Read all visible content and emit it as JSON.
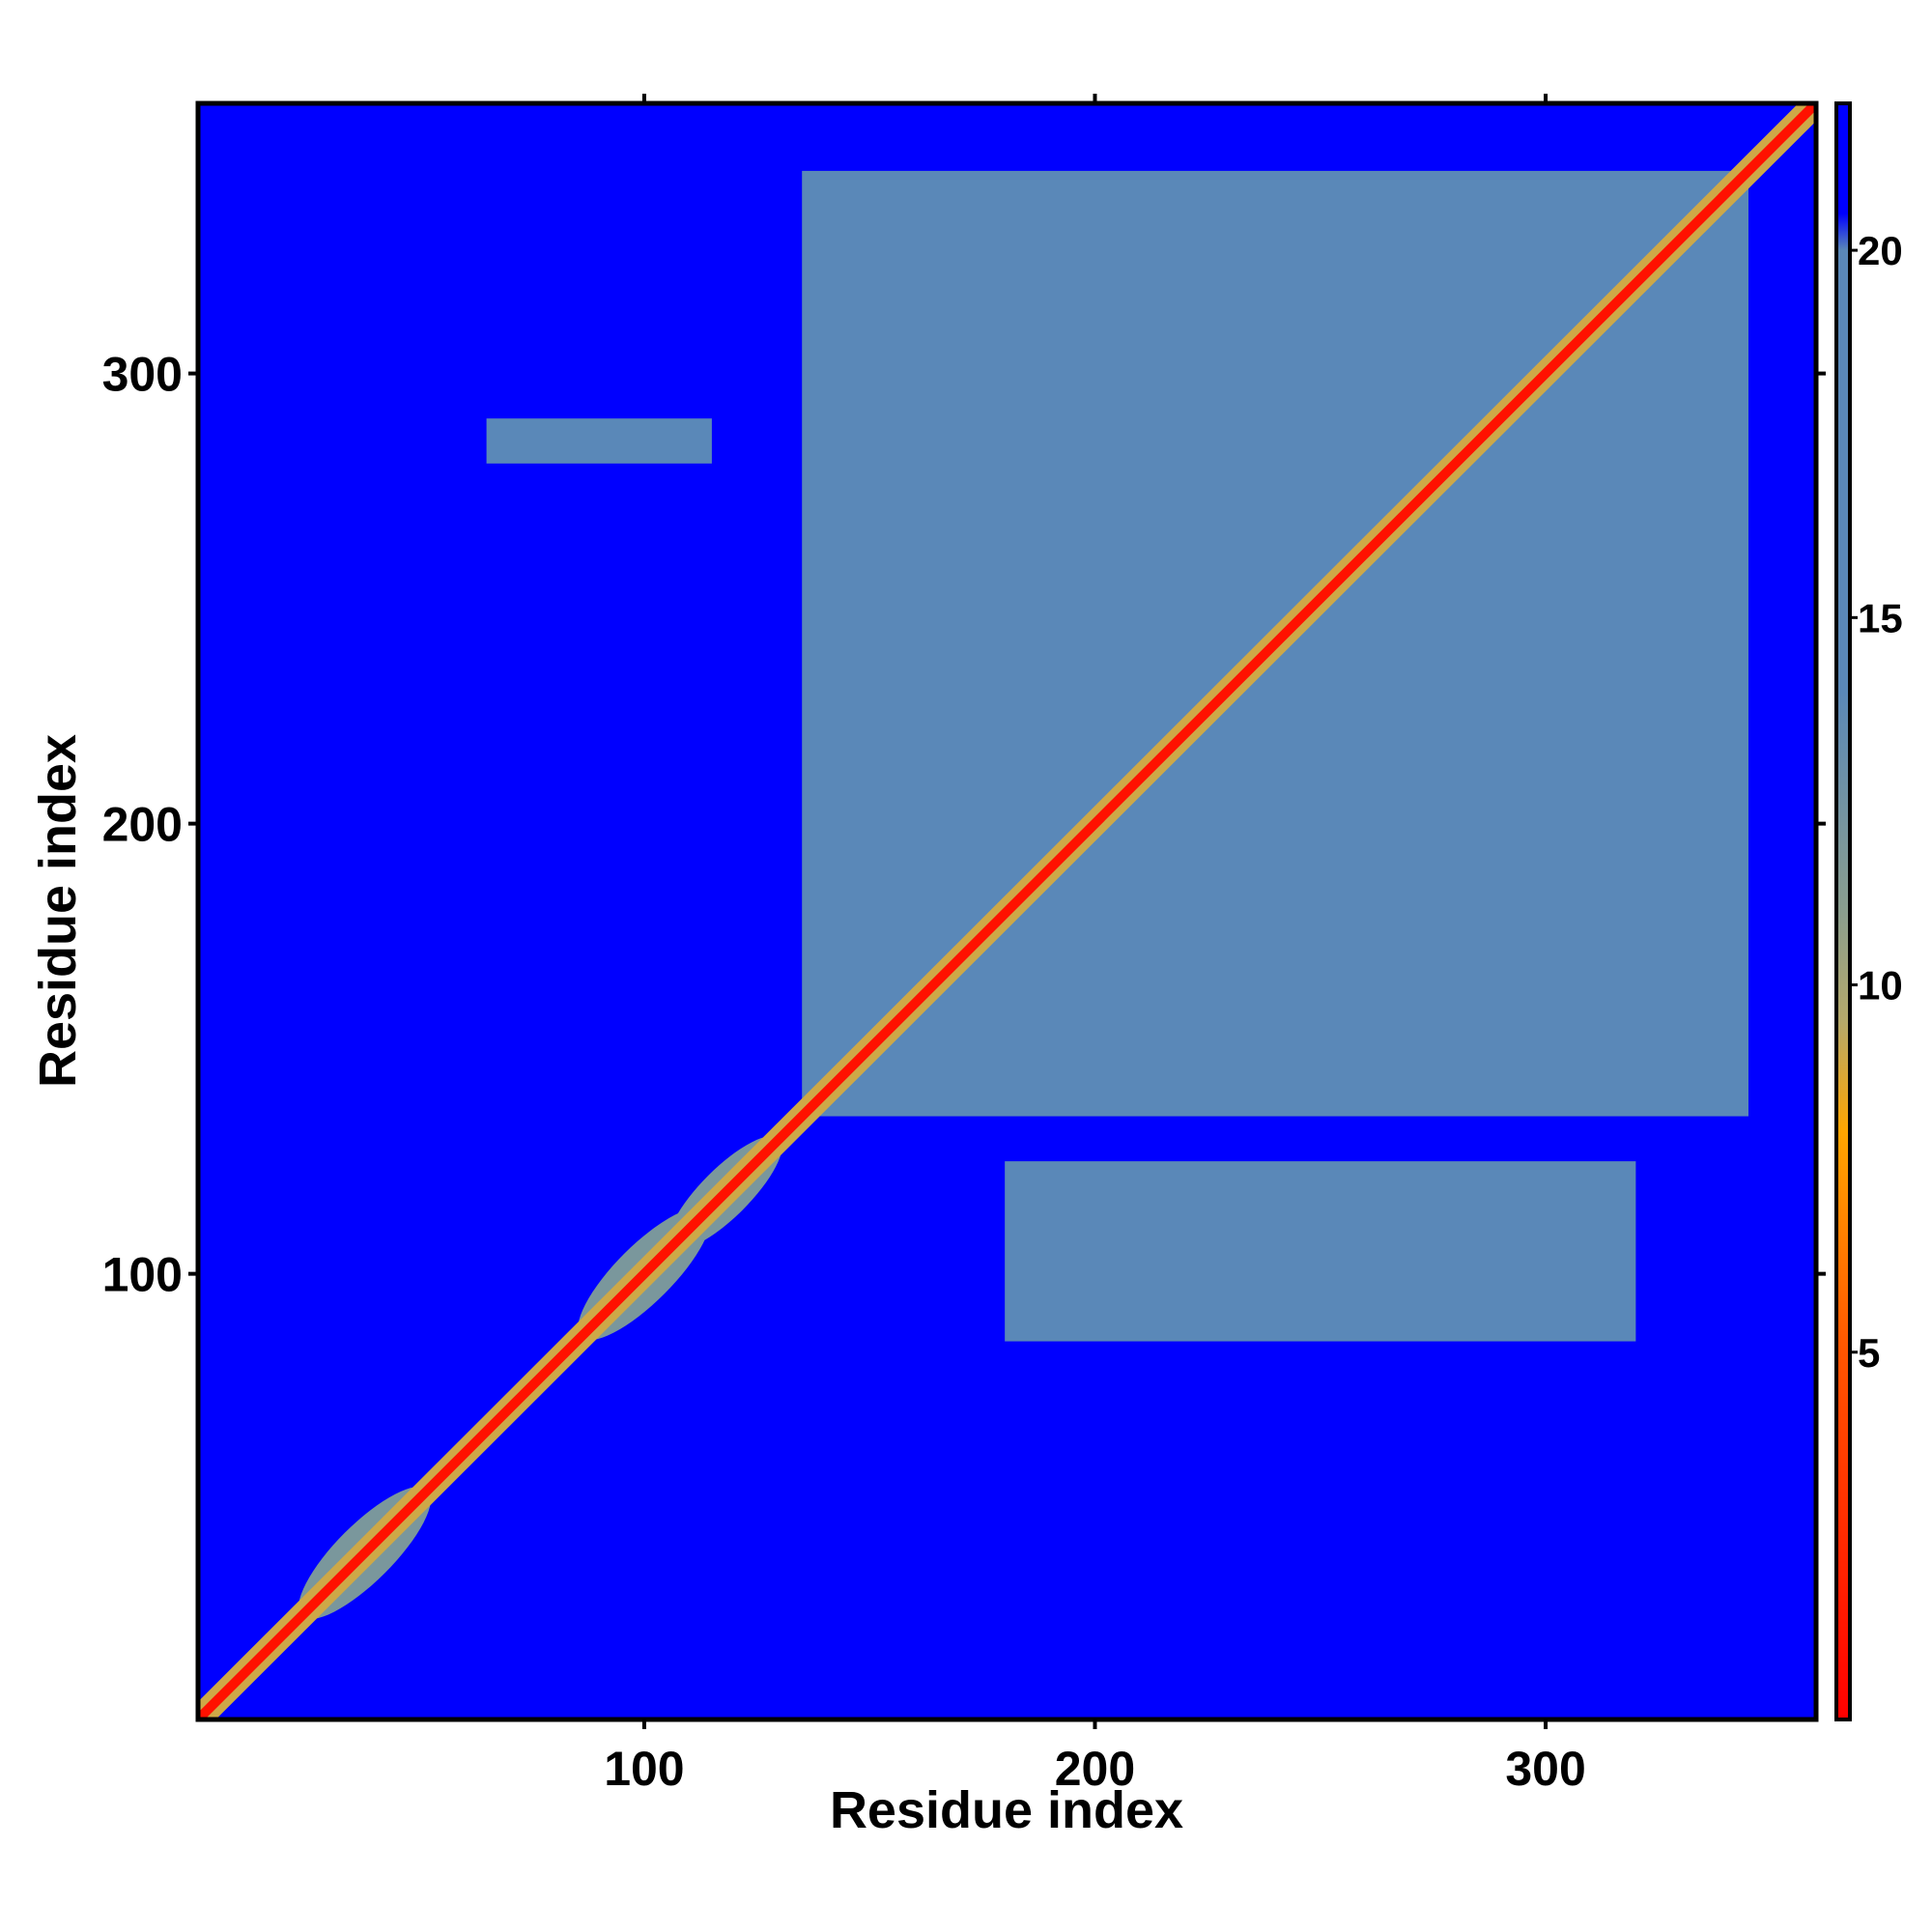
{
  "chart_data": {
    "type": "heatmap",
    "title": "",
    "xlabel": "Residue index",
    "ylabel": "Residue index",
    "xlim": [
      1,
      360
    ],
    "ylim": [
      1,
      360
    ],
    "x_ticks": [
      100,
      200,
      300
    ],
    "y_ticks": [
      100,
      200,
      300
    ],
    "grid": false,
    "colorbar": {
      "min": 0,
      "max": 22,
      "ticks": [
        5,
        10,
        15,
        20
      ],
      "stops": [
        {
          "value": 0,
          "color": "#ff0000"
        },
        {
          "value": 5,
          "color": "#ff5500"
        },
        {
          "value": 8,
          "color": "#ffa500"
        },
        {
          "value": 9.5,
          "color": "#b5a96a"
        },
        {
          "value": 11,
          "color": "#8a9e8e"
        },
        {
          "value": 14,
          "color": "#5a88b8"
        },
        {
          "value": 20,
          "color": "#5a88b8"
        },
        {
          "value": 20.5,
          "color": "#0000ff"
        },
        {
          "value": 22,
          "color": "#0000ff"
        }
      ]
    },
    "background_color": "#0000ff",
    "regions": [
      {
        "x": [
          135,
          345
        ],
        "y": [
          135,
          345
        ],
        "value": 18
      },
      {
        "x": [
          65,
          115
        ],
        "y": [
          280,
          290
        ],
        "value": 18
      },
      {
        "x": [
          180,
          320
        ],
        "y": [
          85,
          125
        ],
        "value": 18
      }
    ],
    "diagonal": {
      "from": 1,
      "to": 360,
      "value": 1
    },
    "diagonal_domains": [
      {
        "center": 38,
        "width": 14,
        "value": 12
      },
      {
        "center": 100,
        "width": 14,
        "value": 12
      },
      {
        "center": 118,
        "width": 12,
        "value": 12
      }
    ]
  }
}
